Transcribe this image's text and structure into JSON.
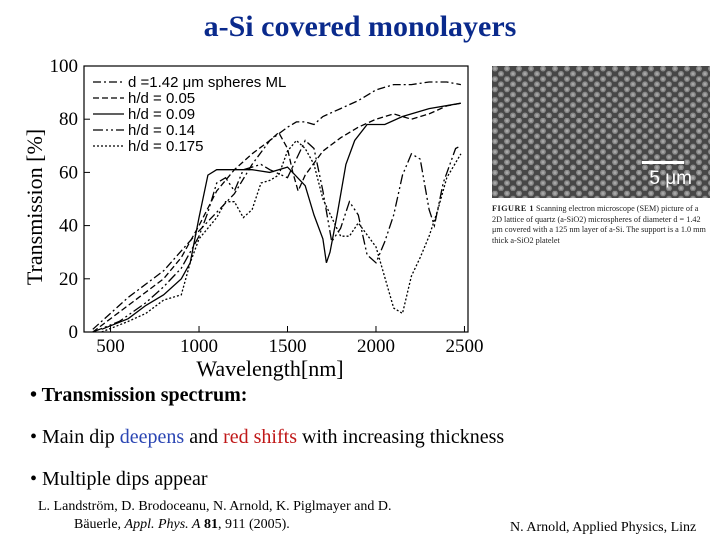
{
  "title": "a-Si covered monolayers",
  "chart_data": {
    "type": "line",
    "xlabel": "Wavelength[nm]",
    "ylabel": "Transmission [%]",
    "xlim": [
      350,
      2520
    ],
    "ylim": [
      0,
      100
    ],
    "xticks": [
      500,
      1000,
      1500,
      2000,
      2500
    ],
    "yticks": [
      0,
      20,
      40,
      60,
      80,
      100
    ],
    "legend_position": "top-left",
    "series": [
      {
        "name": "d =1.42 μm spheres ML",
        "dash": "8,3,2,3",
        "points": [
          [
            400,
            1
          ],
          [
            600,
            13
          ],
          [
            800,
            23
          ],
          [
            1000,
            38
          ],
          [
            1200,
            52
          ],
          [
            1300,
            63
          ],
          [
            1400,
            72
          ],
          [
            1500,
            77
          ],
          [
            1550,
            79
          ],
          [
            1600,
            79
          ],
          [
            1650,
            78
          ],
          [
            1700,
            81
          ],
          [
            1800,
            84
          ],
          [
            1900,
            87
          ],
          [
            2000,
            91
          ],
          [
            2100,
            93
          ],
          [
            2200,
            93
          ],
          [
            2300,
            94
          ],
          [
            2400,
            94
          ],
          [
            2480,
            93
          ]
        ]
      },
      {
        "name": "h/d = 0.05",
        "dash": "6,3",
        "points": [
          [
            400,
            0
          ],
          [
            600,
            10
          ],
          [
            800,
            20
          ],
          [
            900,
            28
          ],
          [
            1000,
            40
          ],
          [
            1100,
            53
          ],
          [
            1200,
            61
          ],
          [
            1300,
            67
          ],
          [
            1400,
            72
          ],
          [
            1450,
            75
          ],
          [
            1500,
            69
          ],
          [
            1530,
            60
          ],
          [
            1560,
            53
          ],
          [
            1600,
            59
          ],
          [
            1700,
            68
          ],
          [
            1800,
            73
          ],
          [
            1900,
            77
          ],
          [
            2000,
            80
          ],
          [
            2100,
            82
          ],
          [
            2200,
            80
          ],
          [
            2300,
            82
          ],
          [
            2400,
            85
          ],
          [
            2480,
            86
          ]
        ]
      },
      {
        "name": "h/d = 0.09",
        "dash": "",
        "points": [
          [
            450,
            1
          ],
          [
            600,
            5
          ],
          [
            700,
            10
          ],
          [
            800,
            14
          ],
          [
            900,
            20
          ],
          [
            950,
            26
          ],
          [
            1000,
            43
          ],
          [
            1050,
            59
          ],
          [
            1100,
            61
          ],
          [
            1200,
            61
          ],
          [
            1300,
            61
          ],
          [
            1400,
            60
          ],
          [
            1500,
            62
          ],
          [
            1600,
            55
          ],
          [
            1650,
            44
          ],
          [
            1700,
            35
          ],
          [
            1720,
            26
          ],
          [
            1740,
            30
          ],
          [
            1780,
            44
          ],
          [
            1830,
            63
          ],
          [
            1880,
            72
          ],
          [
            1950,
            78
          ],
          [
            2050,
            78
          ],
          [
            2150,
            81
          ],
          [
            2300,
            84
          ],
          [
            2480,
            86
          ]
        ]
      },
      {
        "name": "h/d = 0.14",
        "dash": "10,3,2,3,2,3",
        "points": [
          [
            400,
            0
          ],
          [
            550,
            4
          ],
          [
            700,
            11
          ],
          [
            800,
            17
          ],
          [
            900,
            24
          ],
          [
            1000,
            36
          ],
          [
            1050,
            45
          ],
          [
            1100,
            56
          ],
          [
            1150,
            58
          ],
          [
            1200,
            53
          ],
          [
            1250,
            61
          ],
          [
            1300,
            62
          ],
          [
            1350,
            63
          ],
          [
            1400,
            61
          ],
          [
            1500,
            58
          ],
          [
            1600,
            72
          ],
          [
            1650,
            69
          ],
          [
            1700,
            53
          ],
          [
            1750,
            34
          ],
          [
            1800,
            39
          ],
          [
            1850,
            49
          ],
          [
            1900,
            44
          ],
          [
            1950,
            29
          ],
          [
            2000,
            26
          ],
          [
            2050,
            34
          ],
          [
            2100,
            44
          ],
          [
            2150,
            59
          ],
          [
            2200,
            67
          ],
          [
            2250,
            65
          ],
          [
            2300,
            46
          ],
          [
            2330,
            40
          ],
          [
            2380,
            56
          ],
          [
            2450,
            69
          ],
          [
            2480,
            70
          ]
        ]
      },
      {
        "name": "h/d = 0.175",
        "dash": "2,2",
        "points": [
          [
            450,
            0
          ],
          [
            600,
            4
          ],
          [
            700,
            7
          ],
          [
            800,
            12
          ],
          [
            900,
            14
          ],
          [
            950,
            26
          ],
          [
            1000,
            35
          ],
          [
            1100,
            43
          ],
          [
            1150,
            49
          ],
          [
            1200,
            49
          ],
          [
            1250,
            43
          ],
          [
            1300,
            46
          ],
          [
            1350,
            56
          ],
          [
            1400,
            57
          ],
          [
            1450,
            59
          ],
          [
            1500,
            68
          ],
          [
            1550,
            72
          ],
          [
            1600,
            69
          ],
          [
            1650,
            63
          ],
          [
            1700,
            50
          ],
          [
            1800,
            36
          ],
          [
            1850,
            36
          ],
          [
            1900,
            41
          ],
          [
            2000,
            32
          ],
          [
            2100,
            9
          ],
          [
            2150,
            7
          ],
          [
            2200,
            21
          ],
          [
            2250,
            28
          ],
          [
            2300,
            36
          ],
          [
            2350,
            46
          ],
          [
            2400,
            58
          ],
          [
            2480,
            67
          ]
        ]
      }
    ]
  },
  "sem": {
    "scale_label": "5 μm",
    "caption_fig": "FIGURE 1",
    "caption_text": "Scanning electron microscope (SEM) picture of a 2D lattice of quartz (a-SiO2) microspheres of diameter d = 1.42 μm covered with a 125 nm layer of a-Si. The support is a 1.0 mm thick a-SiO2 platelet"
  },
  "bullets": {
    "b1": "• Transmission spectrum:",
    "b2_pre": "• Main dip ",
    "b2_blue": "deepens",
    "b2_mid": " and ",
    "b2_red": "red shifts",
    "b2_post": " with increasing thickness",
    "b3": "• Multiple dips appear"
  },
  "reference": {
    "line1": "L. Landström, D. Brodoceanu, N. Arnold, K. Piglmayer and D.",
    "line2_pre": "Bäuerle, ",
    "line2_journal": "Appl. Phys. A",
    "line2_vol": " 81",
    "line2_post": ", 911 (2005)."
  },
  "author": "N. Arnold, Applied Physics, Linz"
}
